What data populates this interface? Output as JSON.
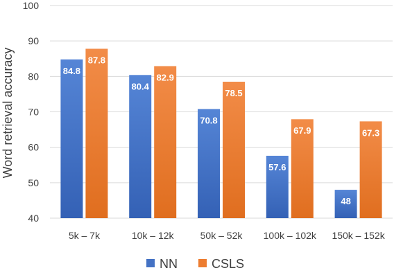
{
  "chart_data": {
    "type": "bar",
    "categories": [
      "5k – 7k",
      "10k – 12k",
      "50k – 52k",
      "100k – 102k",
      "150k – 152k"
    ],
    "series": [
      {
        "name": "NN",
        "values": [
          84.8,
          80.4,
          70.8,
          57.6,
          48
        ],
        "color": "#4472c4"
      },
      {
        "name": "CSLS",
        "values": [
          87.8,
          82.9,
          78.5,
          67.9,
          67.3
        ],
        "color": "#ed7d31"
      }
    ],
    "ylabel": "Word retrieval accuracy",
    "xlabel": "",
    "ylim": [
      40,
      100
    ],
    "yticks": [
      40,
      50,
      60,
      70,
      80,
      90,
      100
    ],
    "grid": true,
    "legend": "bottom",
    "data_labels": true
  }
}
